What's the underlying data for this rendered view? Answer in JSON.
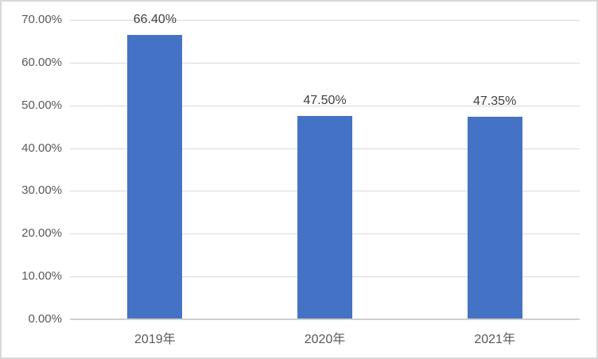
{
  "chart_data": {
    "type": "bar",
    "title": "",
    "xlabel": "",
    "ylabel": "",
    "categories": [
      "2019年",
      "2020年",
      "2021年"
    ],
    "values": [
      66.4,
      47.5,
      47.35
    ],
    "data_labels": [
      "66.40%",
      "47.50%",
      "47.35%"
    ],
    "ylim": [
      0,
      70
    ],
    "ytick_step": 10,
    "ytick_values": [
      0,
      10,
      20,
      30,
      40,
      50,
      60,
      70
    ],
    "ytick_labels": [
      "0.00%",
      "10.00%",
      "20.00%",
      "30.00%",
      "40.00%",
      "50.00%",
      "60.00%",
      "70.00%"
    ],
    "grid": true,
    "legend_position": "none",
    "colors": {
      "bar_fill": "#4472C4",
      "gridline": "#D9D9D9",
      "axis_line": "#CFCFCF",
      "chart_border": "#D9D9D9",
      "axis_text": "#595959",
      "data_label_text": "#404040",
      "background": "#FFFFFF"
    }
  }
}
